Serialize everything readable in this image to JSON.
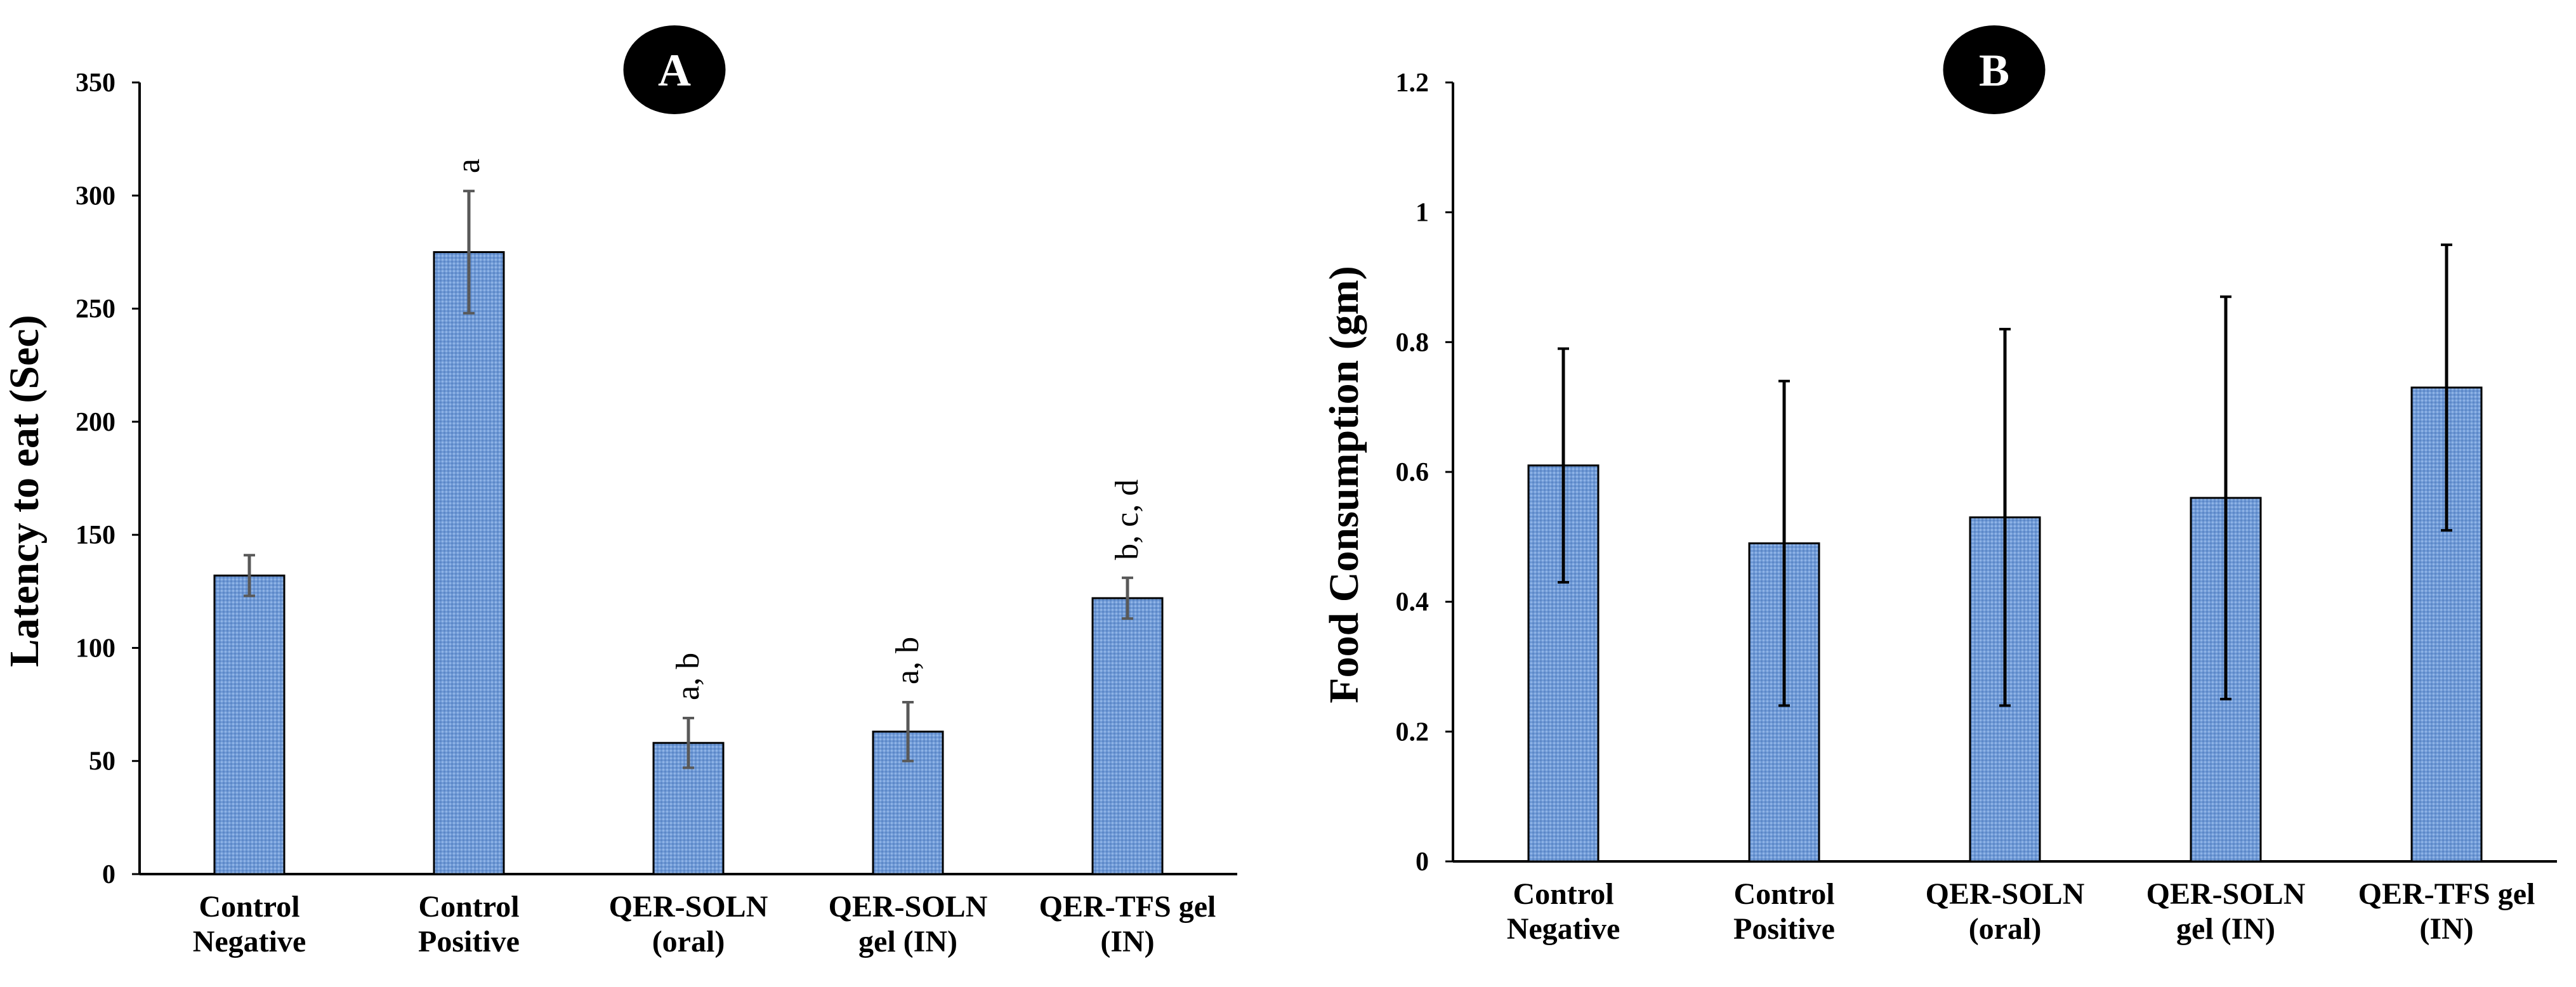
{
  "chart_data": [
    {
      "type": "bar",
      "panel_label": "A",
      "ylabel": "Latency to eat (Sec)",
      "xlabel": "",
      "ylim": [
        0,
        350
      ],
      "yticks": [
        "0",
        "50",
        "100",
        "150",
        "200",
        "250",
        "300",
        "350"
      ],
      "categories": [
        [
          "Control",
          "Negative"
        ],
        [
          "Control",
          "Positive"
        ],
        [
          "QER-SOLN",
          "(oral)"
        ],
        [
          "QER-SOLN",
          "gel (IN)"
        ],
        [
          "QER-TFS gel",
          "(IN)"
        ]
      ],
      "values": [
        132,
        275,
        58,
        63,
        122
      ],
      "errors": [
        9,
        27,
        11,
        13,
        9
      ],
      "annotations": [
        "",
        "a",
        "a, b",
        "a, b",
        "b, c, d"
      ],
      "bar_color": "#6f9ad6",
      "error_color": "#595959"
    },
    {
      "type": "bar",
      "panel_label": "B",
      "ylabel": "Food Consumption (gm)",
      "xlabel": "",
      "ylim": [
        0,
        1.2
      ],
      "yticks": [
        "0",
        "0.2",
        "0.4",
        "0.6",
        "0.8",
        "1",
        "1.2"
      ],
      "categories": [
        [
          "Control",
          "Negative"
        ],
        [
          "Control",
          "Positive"
        ],
        [
          "QER-SOLN",
          "(oral)"
        ],
        [
          "QER-SOLN",
          "gel (IN)"
        ],
        [
          "QER-TFS gel",
          "(IN)"
        ]
      ],
      "values": [
        0.61,
        0.49,
        0.53,
        0.56,
        0.73
      ],
      "errors": [
        0.18,
        0.25,
        0.29,
        0.31,
        0.22
      ],
      "annotations": [
        "",
        "",
        "",
        "",
        ""
      ],
      "bar_color": "#6f9ad6",
      "error_color": "#000000"
    }
  ]
}
